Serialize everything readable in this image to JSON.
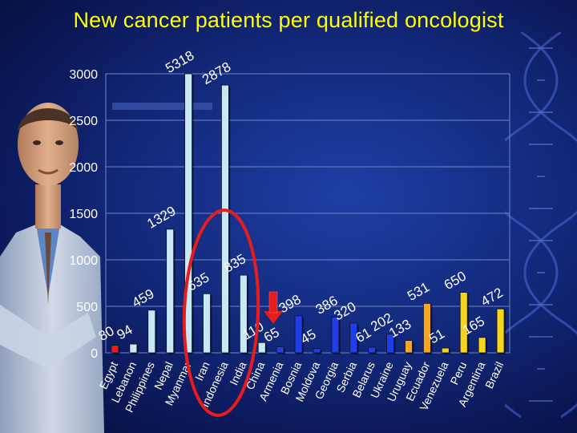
{
  "page": {
    "title": "New cancer patients per qualified oncologist"
  },
  "colors": {
    "background": "#12287a",
    "title": "#ffff00",
    "bar_light": "#c6e9f5",
    "bar_blue": "#1f3ee8",
    "bar_orange": "#f5a623",
    "bar_yellow": "#f7d51b",
    "bar_red": "#e81c1c",
    "highlight_ellipse": "#e81c1c",
    "arrow": "#e81c1c"
  },
  "chart_data": {
    "type": "bar",
    "title": "New cancer patients per qualified oncologist",
    "xlabel": "",
    "ylabel": "",
    "ylim": [
      0,
      3000
    ],
    "yticks": [
      0,
      500,
      1000,
      1500,
      2000,
      2500,
      3000
    ],
    "grid": true,
    "legend": "none",
    "categories": [
      "Egypt",
      "Lebanon",
      "Philippines",
      "Nepal",
      "Myanmar",
      "Iran",
      "Indonesia",
      "India",
      "China",
      "Armenia",
      "Bosnia",
      "Moldova",
      "Georgia",
      "Serbia",
      "Belarus",
      "Ukraine",
      "Uruguay",
      "Ecuador",
      "Venezuela",
      "Peru",
      "Argentina",
      "Brazil"
    ],
    "values": [
      80,
      94,
      459,
      1329,
      5318,
      635,
      2878,
      835,
      110,
      65,
      398,
      45,
      386,
      320,
      61,
      202,
      133,
      531,
      51,
      650,
      165,
      472
    ],
    "value_labels": [
      "80",
      "94",
      "459",
      "1329",
      "5318",
      "635",
      "2878",
      "835",
      "110",
      "65",
      "398",
      "45",
      "386",
      "320",
      "61",
      "202",
      "133",
      "531",
      "51",
      "650",
      "165",
      "472"
    ],
    "bar_color_groups": [
      "red",
      "light",
      "light",
      "light",
      "light",
      "light",
      "light",
      "light",
      "light",
      "blue",
      "blue",
      "blue",
      "blue",
      "blue",
      "blue",
      "blue",
      "orange",
      "orange",
      "yellow",
      "yellow",
      "yellow",
      "yellow"
    ],
    "highlighted": [
      "Iran",
      "Indonesia",
      "India",
      "China"
    ],
    "arrow_points_to": "Armenia"
  }
}
